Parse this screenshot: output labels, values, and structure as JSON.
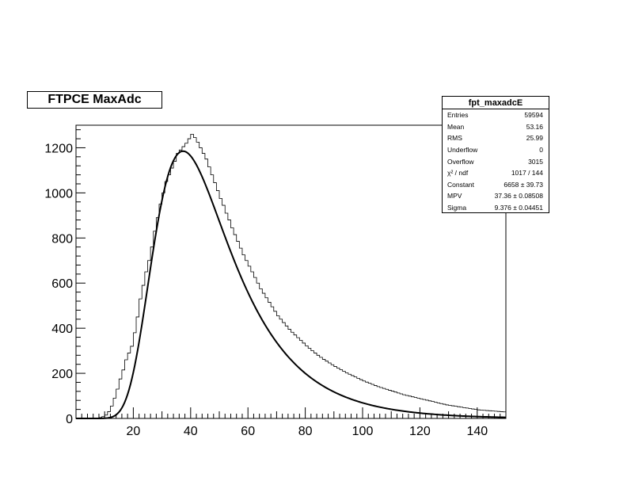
{
  "title": "FTPCE MaxAdc",
  "stats": {
    "name": "fpt_maxadcE",
    "rows": [
      {
        "label": "Entries",
        "value": "59594"
      },
      {
        "label": "Mean",
        "value": "53.16"
      },
      {
        "label": "RMS",
        "value": "25.99"
      },
      {
        "label": "Underflow",
        "value": "0"
      },
      {
        "label": "Overflow",
        "value": "3015"
      },
      {
        "label": "χ² / ndf",
        "value": "1017 / 144"
      },
      {
        "label": "Constant",
        "value": "6658 ± 39.73"
      },
      {
        "label": "MPV",
        "value": "37.36 ± 0.08508"
      },
      {
        "label": "Sigma",
        "value": "9.376 ± 0.04451"
      }
    ]
  },
  "chart_data": {
    "type": "histogram",
    "title": "FTPCE MaxAdc",
    "xlabel": "",
    "ylabel": "",
    "xlim": [
      0,
      150
    ],
    "ylim": [
      0,
      1300
    ],
    "x_ticks": [
      20,
      40,
      60,
      80,
      100,
      120,
      140
    ],
    "y_ticks": [
      0,
      200,
      400,
      600,
      800,
      1000,
      1200
    ],
    "grid": false,
    "legend": "none",
    "histogram": {
      "bin_width": 1,
      "x_start": 0,
      "counts": [
        0,
        0,
        0,
        0,
        0,
        0,
        1,
        2,
        4,
        8,
        15,
        30,
        55,
        90,
        130,
        175,
        215,
        260,
        290,
        320,
        380,
        450,
        530,
        590,
        650,
        700,
        760,
        830,
        890,
        950,
        1000,
        1050,
        1080,
        1110,
        1140,
        1175,
        1190,
        1205,
        1220,
        1240,
        1260,
        1245,
        1225,
        1200,
        1175,
        1150,
        1115,
        1080,
        1045,
        1010,
        975,
        945,
        910,
        880,
        845,
        815,
        785,
        755,
        725,
        700,
        675,
        650,
        625,
        600,
        575,
        555,
        535,
        515,
        495,
        475,
        455,
        440,
        425,
        410,
        395,
        382,
        370,
        358,
        346,
        334,
        322,
        311,
        300,
        290,
        280,
        271,
        262,
        254,
        246,
        238,
        230,
        223,
        216,
        209,
        202,
        196,
        190,
        184,
        178,
        172,
        166,
        161,
        156,
        151,
        146,
        141,
        137,
        133,
        129,
        125,
        121,
        117,
        113,
        109,
        105,
        102,
        99,
        96,
        93,
        90,
        87,
        84,
        81,
        78,
        75,
        72,
        69,
        66,
        63,
        60,
        58,
        56,
        54,
        52,
        50,
        48,
        46,
        44,
        42,
        40,
        38,
        37,
        36,
        35,
        34,
        33,
        32,
        31,
        30,
        29
      ]
    },
    "fit": {
      "function": "landau",
      "constant": 6658,
      "mpv": 37.36,
      "sigma": 9.376,
      "peak": 1185,
      "x_range": [
        0,
        150
      ]
    },
    "colors": {
      "axis": "#000000",
      "histogram": "#000000",
      "fit": "#000000"
    }
  }
}
